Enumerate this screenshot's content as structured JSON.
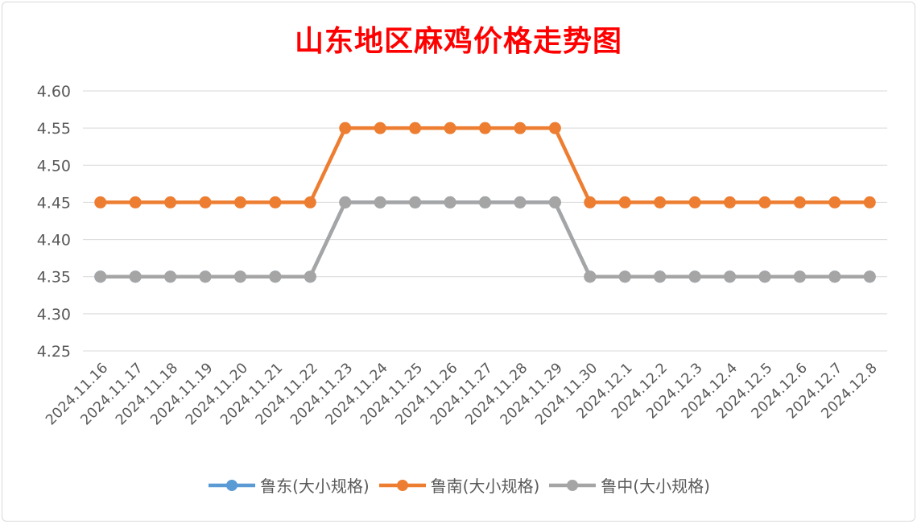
{
  "chart_data": {
    "type": "line",
    "title": "山东地区麻鸡价格走势图",
    "xlabel": "",
    "ylabel": "",
    "ylim": [
      4.25,
      4.6
    ],
    "yticks": [
      "4.25",
      "4.30",
      "4.35",
      "4.40",
      "4.45",
      "4.50",
      "4.55",
      "4.60"
    ],
    "grid": true,
    "legend_position": "bottom",
    "categories": [
      "2024.11.16",
      "2024.11.17",
      "2024.11.18",
      "2024.11.19",
      "2024.11.20",
      "2024.11.21",
      "2024.11.22",
      "2024.11.23",
      "2024.11.24",
      "2024.11.25",
      "2024.11.26",
      "2024.11.27",
      "2024.11.28",
      "2024.11.29",
      "2024.11.30",
      "2024.12.1",
      "2024.12.2",
      "2024.12.3",
      "2024.12.4",
      "2024.12.5",
      "2024.12.6",
      "2024.12.7",
      "2024.12.8"
    ],
    "series": [
      {
        "name": "鲁东(大小规格)",
        "color": "#5b9bd5",
        "values": [
          4.35,
          4.35,
          4.35,
          4.35,
          4.35,
          4.35,
          4.35,
          4.45,
          4.45,
          4.45,
          4.45,
          4.45,
          4.45,
          4.45,
          4.35,
          4.35,
          4.35,
          4.35,
          4.35,
          4.35,
          4.35,
          4.35,
          4.35
        ]
      },
      {
        "name": "鲁南(大小规格)",
        "color": "#ed7d31",
        "values": [
          4.45,
          4.45,
          4.45,
          4.45,
          4.45,
          4.45,
          4.45,
          4.55,
          4.55,
          4.55,
          4.55,
          4.55,
          4.55,
          4.55,
          4.45,
          4.45,
          4.45,
          4.45,
          4.45,
          4.45,
          4.45,
          4.45,
          4.45
        ]
      },
      {
        "name": "鲁中(大小规格)",
        "color": "#a5a5a5",
        "values": [
          4.35,
          4.35,
          4.35,
          4.35,
          4.35,
          4.35,
          4.35,
          4.45,
          4.45,
          4.45,
          4.45,
          4.45,
          4.45,
          4.45,
          4.35,
          4.35,
          4.35,
          4.35,
          4.35,
          4.35,
          4.35,
          4.35,
          4.35
        ]
      }
    ]
  }
}
